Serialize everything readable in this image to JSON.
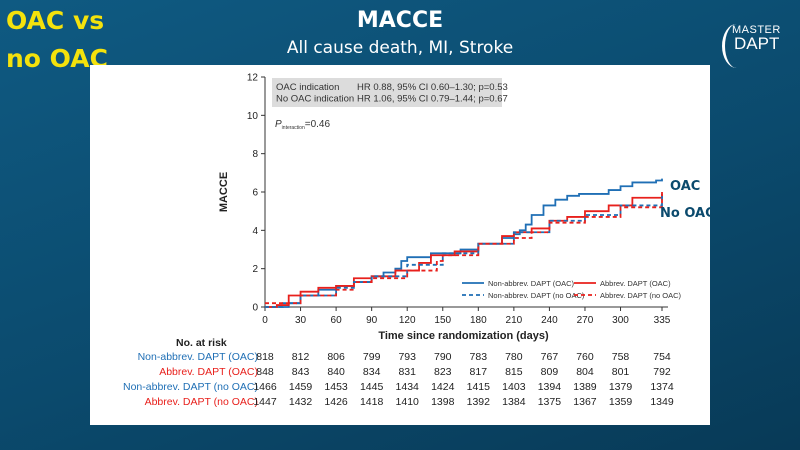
{
  "side_title": [
    "OAC vs",
    "no OAC"
  ],
  "title": "MACCE",
  "subtitle": "All cause death, MI, Stroke",
  "logo": {
    "line1": "MASTER",
    "line2": "DAPT"
  },
  "colors": {
    "blue": "#1f6fb5",
    "red": "#e8201c",
    "side_title": "#f4e20c"
  },
  "chart_data": {
    "type": "line",
    "ylabel": "MACCE",
    "xlabel": "Time since randomization (days)",
    "xlim": [
      0,
      335
    ],
    "ylim": [
      0,
      12
    ],
    "xticks": [
      0,
      30,
      60,
      90,
      120,
      150,
      180,
      210,
      240,
      270,
      300,
      335
    ],
    "yticks": [
      0,
      2,
      4,
      6,
      8,
      10,
      12
    ],
    "hr_box": [
      {
        "label": "OAC indication",
        "value": "HR 0.88, 95% CI 0.60–1.30; p=0.53"
      },
      {
        "label": "No OAC indication",
        "value": "HR 1.06, 95% CI 0.79–1.44; p=0.67"
      }
    ],
    "p_interaction": {
      "p": "P",
      "sub": "interaction",
      "value": "=0.46"
    },
    "annotations": [
      "OAC",
      "No OAC"
    ],
    "series": [
      {
        "name": "Non-abbrev. DAPT (OAC)",
        "color": "#1f6fb5",
        "dashed": false,
        "x": [
          0,
          10,
          20,
          30,
          45,
          60,
          75,
          90,
          100,
          110,
          115,
          120,
          135,
          140,
          160,
          165,
          180,
          200,
          210,
          215,
          220,
          225,
          235,
          245,
          255,
          265,
          290,
          300,
          310,
          330,
          335
        ],
        "y": [
          0,
          0,
          0.2,
          0.6,
          0.9,
          1.1,
          1.3,
          1.6,
          1.8,
          2.0,
          2.4,
          2.6,
          2.6,
          2.8,
          2.8,
          3.0,
          3.3,
          3.6,
          3.8,
          4.0,
          4.3,
          4.8,
          5.3,
          5.6,
          5.8,
          5.9,
          6.1,
          6.3,
          6.5,
          6.6,
          6.7
        ]
      },
      {
        "name": "Abbrev. DAPT (OAC)",
        "color": "#e8201c",
        "dashed": false,
        "x": [
          0,
          10,
          20,
          30,
          45,
          60,
          75,
          90,
          110,
          130,
          140,
          160,
          180,
          200,
          210,
          225,
          240,
          255,
          270,
          290,
          310,
          335
        ],
        "y": [
          0,
          0.1,
          0.6,
          0.8,
          1.0,
          1.1,
          1.5,
          1.6,
          1.9,
          2.3,
          2.7,
          2.9,
          3.3,
          3.7,
          3.9,
          4.1,
          4.5,
          4.7,
          5.0,
          5.3,
          5.7,
          6.0
        ]
      },
      {
        "name": "Non-abbrev. DAPT (no OAC)",
        "color": "#1f6fb5",
        "dashed": true,
        "x": [
          0,
          15,
          30,
          60,
          75,
          90,
          120,
          150,
          180,
          210,
          240,
          270,
          300,
          335
        ],
        "y": [
          0,
          0.2,
          0.6,
          1.0,
          1.3,
          1.6,
          2.2,
          2.8,
          3.3,
          3.9,
          4.5,
          4.8,
          5.3,
          5.8
        ]
      },
      {
        "name": "Abbrev. DAPT (no OAC)",
        "color": "#e8201c",
        "dashed": true,
        "x": [
          0,
          10,
          30,
          60,
          75,
          90,
          120,
          145,
          150,
          180,
          210,
          225,
          240,
          270,
          300,
          335
        ],
        "y": [
          0.2,
          0.2,
          0.6,
          0.9,
          1.3,
          1.5,
          1.9,
          2.4,
          2.7,
          3.3,
          3.6,
          3.9,
          4.4,
          4.7,
          5.2,
          5.9
        ]
      }
    ],
    "risk_table": {
      "title": "No. at risk",
      "rows": [
        {
          "label": "Non-abbrev. DAPT (OAC)",
          "color": "#1f6fb5",
          "values": [
            818,
            812,
            806,
            799,
            793,
            790,
            783,
            780,
            767,
            760,
            758,
            754
          ]
        },
        {
          "label": "Abbrev. DAPT (OAC)",
          "color": "#e8201c",
          "values": [
            848,
            843,
            840,
            834,
            831,
            823,
            817,
            815,
            809,
            804,
            801,
            792
          ]
        },
        {
          "label": "Non-abbrev. DAPT (no OAC)",
          "color": "#1f6fb5",
          "values": [
            1466,
            1459,
            1453,
            1445,
            1434,
            1424,
            1415,
            1403,
            1394,
            1389,
            1379,
            1374
          ]
        },
        {
          "label": "Abbrev. DAPT (no OAC)",
          "color": "#e8201c",
          "values": [
            1447,
            1432,
            1426,
            1418,
            1410,
            1398,
            1392,
            1384,
            1375,
            1367,
            1359,
            1349
          ]
        }
      ]
    }
  }
}
